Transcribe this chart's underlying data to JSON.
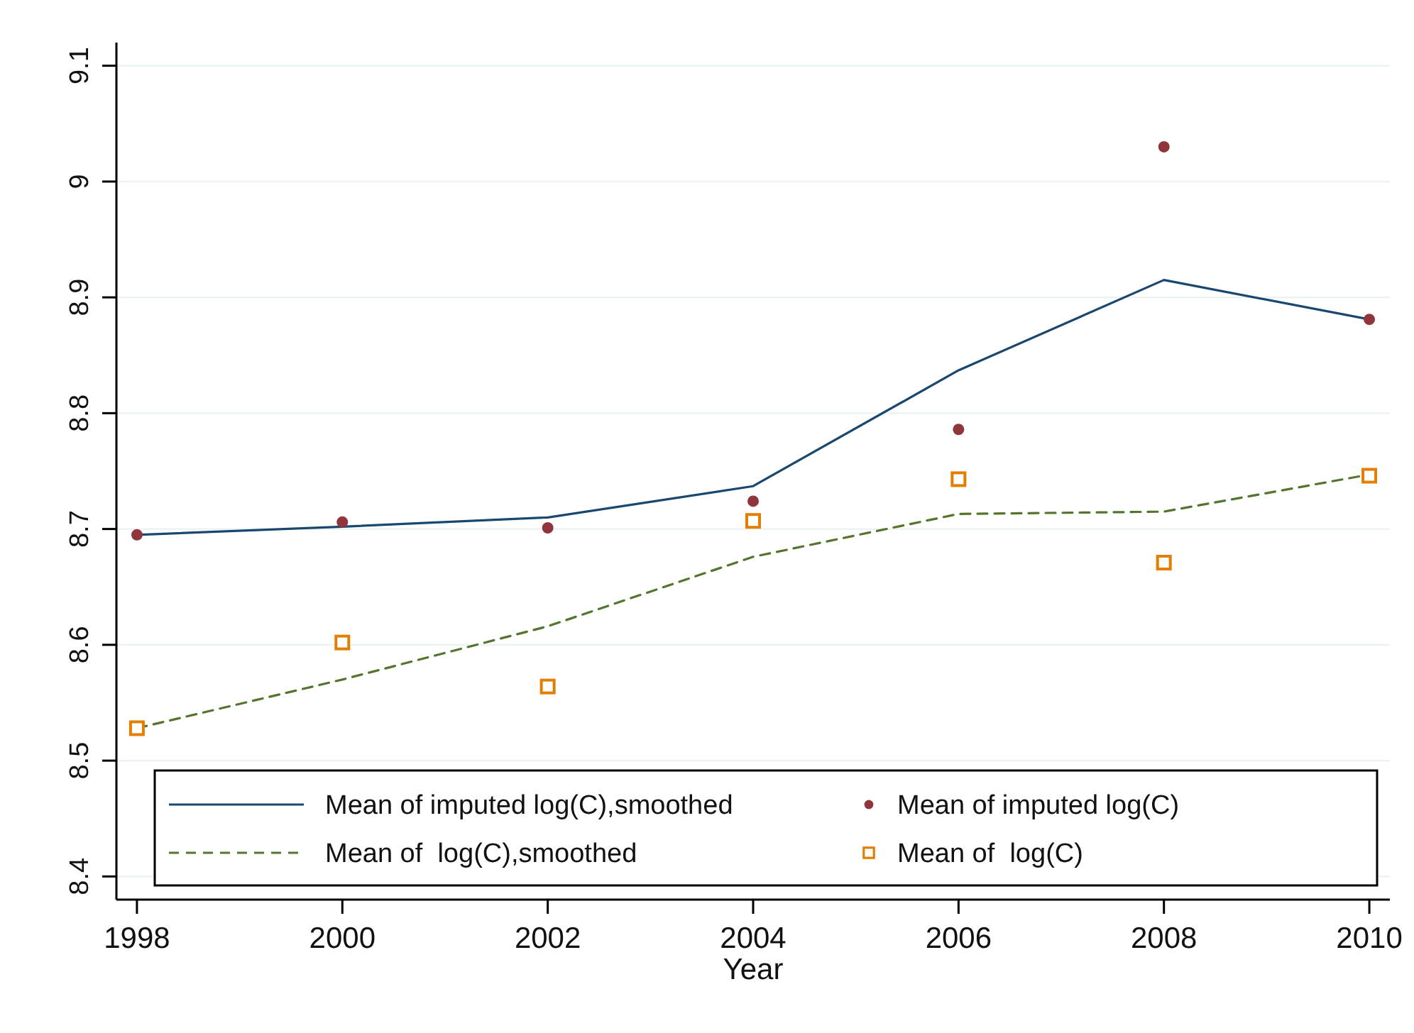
{
  "chart_data": {
    "type": "line",
    "xlabel": "Year",
    "x": [
      1998,
      2000,
      2002,
      2004,
      2006,
      2008,
      2010
    ],
    "xlim": [
      1997.8,
      2010.2
    ],
    "xticks": [
      1998,
      2000,
      2002,
      2004,
      2006,
      2008,
      2010
    ],
    "ylim": [
      8.38,
      9.12
    ],
    "yticks": [
      8.4,
      8.5,
      8.6,
      8.7,
      8.8,
      8.9,
      9,
      9.1
    ],
    "grid": "y",
    "legend": "bottom",
    "series": [
      {
        "name": "Mean of imputed log(C),smoothed",
        "color": "#1a476f",
        "marker": "none",
        "line_style": "solid",
        "values": [
          8.695,
          8.702,
          8.71,
          8.737,
          8.837,
          8.915,
          8.881
        ]
      },
      {
        "name": "Mean of imputed log(C)",
        "type": "scatter",
        "color": "#90353b",
        "marker": "circle",
        "values": [
          8.695,
          8.706,
          8.701,
          8.724,
          8.786,
          9.03,
          8.881
        ]
      },
      {
        "name": "Mean of  log(C),smoothed",
        "color": "#55752f",
        "marker": "none",
        "line_style": "dashed",
        "values": [
          8.528,
          8.57,
          8.616,
          8.676,
          8.713,
          8.715,
          8.747
        ]
      },
      {
        "name": "Mean of  log(C)",
        "type": "scatter",
        "color": "#e37e00",
        "marker": "square",
        "values": [
          8.528,
          8.602,
          8.564,
          8.707,
          8.743,
          8.671,
          8.746
        ]
      }
    ]
  }
}
